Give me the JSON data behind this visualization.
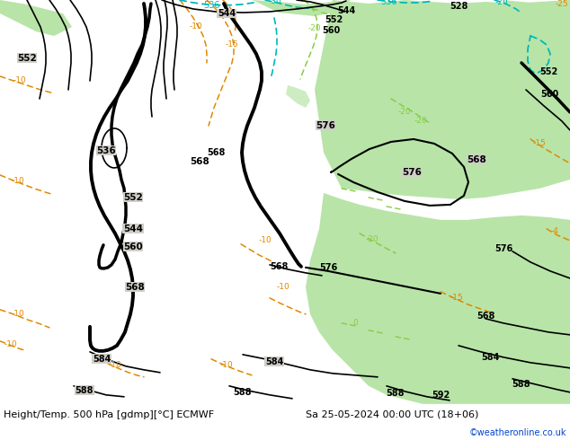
{
  "title_left": "Height/Temp. 500 hPa [gdmp][°C] ECMWF",
  "title_right": "Sa 25-05-2024 00:00 UTC (18+06)",
  "watermark": "©weatheronline.co.uk",
  "bg_color": "#d0cec8",
  "land_color": "#c8c4bc",
  "sea_color": "#d8d5cf",
  "green_color": "#b8e4a8",
  "fig_width": 6.34,
  "fig_height": 4.9,
  "dpi": 100,
  "black": "#000000",
  "orange": "#e08800",
  "cyan": "#00b8b8",
  "lime": "#88cc44",
  "white": "#ffffff"
}
